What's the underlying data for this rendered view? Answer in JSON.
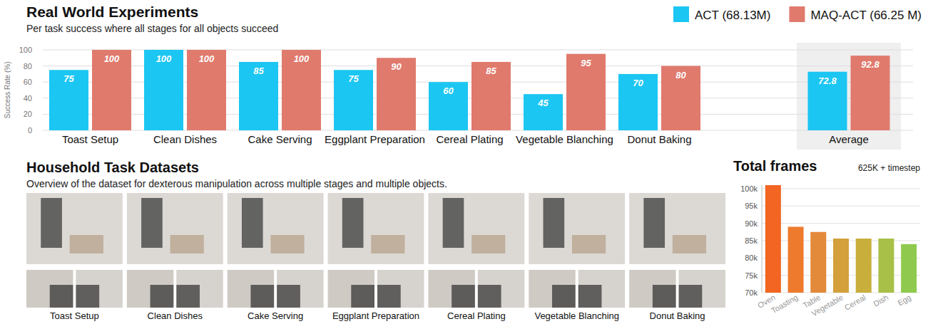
{
  "chart_data": [
    {
      "type": "bar",
      "title": "Real World Experiments",
      "subtitle": "Per task success where all stages for all objects succeed",
      "y_label": "Success Rate (%)",
      "categories": [
        "Toast Setup",
        "Clean Dishes",
        "Cake Serving",
        "Eggplant Preparation",
        "Cereal Plating",
        "Vegetable Blanching",
        "Donut Baking",
        "Average"
      ],
      "series": [
        {
          "name": "ACT (68.13M)",
          "color": "#1cc6f2",
          "values": [
            75,
            100,
            85,
            75,
            60,
            45,
            70,
            72.8
          ]
        },
        {
          "name": "MAQ-ACT (66.25 M)",
          "color": "#e07a6d",
          "values": [
            100,
            100,
            100,
            90,
            85,
            95,
            80,
            92.8
          ]
        }
      ],
      "ylim": [
        0,
        100
      ],
      "yticks": [
        0,
        20,
        40,
        60,
        80,
        100
      ],
      "grid": true,
      "legend": "top-right",
      "data_labels": true
    },
    {
      "type": "bar",
      "title": "Total frames",
      "annotation": "625K + timestep",
      "categories": [
        "Oven",
        "Toasting",
        "Table",
        "Vegetable",
        "Cereal",
        "Dish",
        "Egg"
      ],
      "values": [
        101000,
        89000,
        87500,
        85600,
        85600,
        85600,
        84000
      ],
      "colors": [
        "#f26522",
        "#ee7a2e",
        "#e3893a",
        "#d3a03c",
        "#c9ae3c",
        "#a8c048",
        "#8fca4f"
      ],
      "ylim": [
        70000,
        101000
      ],
      "yticks": [
        {
          "value": 70000,
          "label": "70k"
        },
        {
          "value": 75000,
          "label": "75k"
        },
        {
          "value": 80000,
          "label": "80k"
        },
        {
          "value": 85000,
          "label": "85k"
        },
        {
          "value": 90000,
          "label": "90k"
        },
        {
          "value": 95000,
          "label": "95k"
        },
        {
          "value": 100000,
          "label": "100k"
        }
      ],
      "grid": true
    }
  ],
  "datasets_panel": {
    "title": "Household Task Datasets",
    "subtitle": "Overview of the dataset for dexterous manipulation across multiple stages and multiple objects.",
    "tasks": [
      "Toast Setup",
      "Clean Dishes",
      "Cake Serving",
      "Eggplant Preparation",
      "Cereal Plating",
      "Vegetable Blanching",
      "Donut Baking"
    ]
  }
}
